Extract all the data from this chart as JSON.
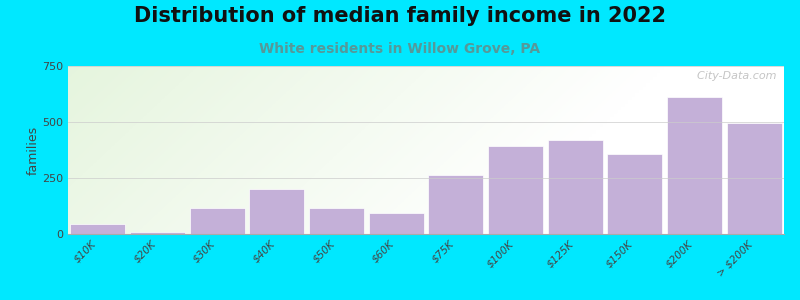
{
  "title": "Distribution of median family income in 2022",
  "subtitle": "White residents in Willow Grove, PA",
  "categories": [
    "$10K",
    "$20K",
    "$30K",
    "$40K",
    "$50K",
    "$60K",
    "$75K",
    "$100K",
    "$125K",
    "$150K",
    "$200K",
    "> $200K"
  ],
  "values": [
    45,
    8,
    115,
    200,
    115,
    95,
    265,
    395,
    420,
    355,
    610,
    495
  ],
  "bar_color": "#c4b0d8",
  "bar_edge_color": "#ffffff",
  "background_outer": "#00e8ff",
  "ylabel": "families",
  "ylim": [
    0,
    750
  ],
  "yticks": [
    0,
    250,
    500,
    750
  ],
  "title_fontsize": 15,
  "subtitle_fontsize": 10,
  "subtitle_color": "#559999",
  "watermark": "  City-Data.com"
}
